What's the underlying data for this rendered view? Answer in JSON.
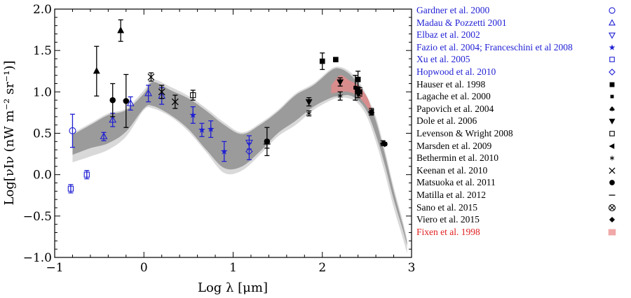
{
  "chart_data": {
    "type": "scatter",
    "title": "",
    "xlabel": "Log λ [μm]",
    "ylabel": "Log[νIν (nW m⁻² sr⁻¹)]",
    "xlim": [
      -1,
      3
    ],
    "ylim": [
      -1.0,
      2.0
    ],
    "x_ticks": [
      "−1",
      "0",
      "1",
      "2",
      "3"
    ],
    "y_ticks": [
      "−1.0",
      "−0.5",
      "0.0",
      "0.5",
      "1.0",
      "1.5",
      "2.0"
    ],
    "legend_position": "right",
    "bands": [
      {
        "name": "light",
        "color": "#d9d9d9",
        "x": [
          -0.8,
          -0.6,
          -0.4,
          -0.2,
          0.0,
          0.1,
          0.3,
          0.5,
          0.7,
          0.9,
          1.1,
          1.3,
          1.5,
          1.7,
          1.9,
          2.1,
          2.2,
          2.3,
          2.4,
          2.5,
          2.6,
          2.7,
          2.8,
          2.9,
          2.95
        ],
        "lo": [
          0.15,
          0.22,
          0.3,
          0.46,
          0.78,
          0.8,
          0.7,
          0.52,
          0.27,
          0.02,
          0.05,
          0.24,
          0.46,
          0.6,
          0.78,
          0.9,
          0.93,
          0.92,
          0.86,
          0.7,
          0.4,
          0.02,
          -0.4,
          -0.76,
          -0.95
        ],
        "hi": [
          0.5,
          0.62,
          0.74,
          0.8,
          1.02,
          1.15,
          1.06,
          0.95,
          0.8,
          0.63,
          0.51,
          0.62,
          0.78,
          0.98,
          1.1,
          1.28,
          1.3,
          1.25,
          1.14,
          0.95,
          0.7,
          0.3,
          -0.15,
          -0.55,
          -0.78
        ]
      },
      {
        "name": "dark",
        "color": "#9b9b9b",
        "x": [
          -0.8,
          -0.6,
          -0.4,
          -0.2,
          0.0,
          0.1,
          0.3,
          0.5,
          0.7,
          0.9,
          1.1,
          1.3,
          1.5,
          1.7,
          1.9,
          2.1,
          2.2,
          2.3,
          2.4,
          2.5,
          2.6,
          2.7,
          2.8,
          2.9,
          2.95
        ],
        "lo": [
          0.24,
          0.32,
          0.38,
          0.52,
          0.8,
          0.83,
          0.72,
          0.55,
          0.3,
          0.08,
          0.1,
          0.28,
          0.5,
          0.65,
          0.82,
          0.93,
          0.95,
          0.96,
          0.9,
          0.76,
          0.48,
          0.12,
          -0.3,
          -0.66,
          -0.85
        ],
        "hi": [
          0.48,
          0.6,
          0.72,
          0.78,
          0.98,
          1.12,
          1.02,
          0.92,
          0.77,
          0.6,
          0.49,
          0.6,
          0.76,
          0.96,
          1.08,
          1.26,
          1.28,
          1.22,
          1.1,
          0.92,
          0.65,
          0.25,
          -0.2,
          -0.6,
          -0.82
        ]
      },
      {
        "name": "Fixen et al. 1998",
        "color": "#d98c8c",
        "x": [
          2.1,
          2.2,
          2.3,
          2.4,
          2.5,
          2.55
        ],
        "lo": [
          0.98,
          1.0,
          1.0,
          0.95,
          0.82,
          0.72
        ],
        "hi": [
          1.08,
          1.2,
          1.14,
          1.08,
          0.94,
          0.8
        ]
      }
    ],
    "series": [
      {
        "name": "Gardner et al. 2000",
        "color": "#1f1fd4",
        "marker": "circle-open",
        "points": [
          [
            -0.8,
            0.53,
            0.2,
            0.2
          ]
        ]
      },
      {
        "name": "Madau & Pozzetti 2001",
        "color": "#1f1fd4",
        "marker": "triangle-up-open",
        "points": [
          [
            -0.45,
            0.46,
            0.05,
            0.05
          ],
          [
            -0.35,
            0.66,
            0.08,
            0.08
          ],
          [
            -0.15,
            0.86,
            0.08,
            0.08
          ],
          [
            0.05,
            0.98,
            0.1,
            0.1
          ],
          [
            0.2,
            0.95,
            0.1,
            0.1
          ]
        ]
      },
      {
        "name": "Elbaz et al. 2002",
        "color": "#1f1fd4",
        "marker": "triangle-down-open",
        "points": [
          [
            1.18,
            0.39,
            0.08,
            0.08
          ]
        ]
      },
      {
        "name": "Fazio et al. 2004; Franceschini et al 2008",
        "color": "#1f1fd4",
        "marker": "star",
        "points": [
          [
            0.55,
            0.72,
            0.1,
            0.1
          ],
          [
            0.65,
            0.54,
            0.08,
            0.08
          ],
          [
            0.75,
            0.55,
            0.1,
            0.1
          ],
          [
            0.9,
            0.28,
            0.12,
            0.12
          ]
        ]
      },
      {
        "name": "Xu et al. 2005",
        "color": "#1f1fd4",
        "marker": "square-open",
        "points": [
          [
            -0.82,
            -0.17,
            0.05,
            0.05
          ],
          [
            -0.64,
            0.0,
            0.05,
            0.05
          ]
        ]
      },
      {
        "name": "Hopwood et al. 2010",
        "color": "#1f1fd4",
        "marker": "diamond-open",
        "points": [
          [
            1.18,
            0.28,
            0.1,
            0.1
          ]
        ]
      },
      {
        "name": "Hauser et al. 1998",
        "color": "#000000",
        "marker": "square",
        "points": [
          [
            2.0,
            1.37,
            0.1,
            0.1
          ],
          [
            2.15,
            1.39,
            0,
            0
          ],
          [
            2.4,
            1.15,
            0.1,
            0.1
          ]
        ]
      },
      {
        "name": "Lagache et al. 2000",
        "color": "#000000",
        "marker": "square-small",
        "points": [
          [
            2.37,
            1.05,
            0.15,
            0.15
          ]
        ]
      },
      {
        "name": "Papovich et al. 2004",
        "color": "#000000",
        "marker": "club",
        "points": [
          [
            2.68,
            0.38,
            0.03,
            0.03
          ]
        ]
      },
      {
        "name": "Dole et al. 2006",
        "color": "#000000",
        "marker": "triangle-down",
        "points": [
          [
            1.85,
            0.88,
            0.05,
            0.05
          ],
          [
            2.2,
            1.12,
            0.05,
            0.05
          ],
          [
            2.4,
            0.98,
            0.05,
            0.05
          ]
        ]
      },
      {
        "name": "Levenson & Wright 2008",
        "color": "#000000",
        "marker": "square-open",
        "points": [
          [
            0.55,
            0.96,
            0.06,
            0.06
          ]
        ]
      },
      {
        "name": "Marsden et al. 2009",
        "color": "#000000",
        "marker": "triangle-left",
        "points": [
          [
            2.42,
            1.0,
            0.05,
            0.05
          ],
          [
            2.55,
            0.76,
            0.04,
            0.04
          ]
        ]
      },
      {
        "name": "Bethermin et al. 2010",
        "color": "#000000",
        "marker": "asterisk",
        "points": [
          [
            1.85,
            0.74,
            0.03,
            0.03
          ],
          [
            2.2,
            0.95,
            0.05,
            0.05
          ]
        ]
      },
      {
        "name": "Keenan et al. 2010",
        "color": "#000000",
        "marker": "cross",
        "points": [
          [
            0.08,
            1.18,
            0.05,
            0.05
          ],
          [
            0.2,
            1.0,
            0.08,
            0.08
          ],
          [
            0.35,
            0.88,
            0.08,
            0.08
          ]
        ]
      },
      {
        "name": "Matsuoka et al. 2011",
        "color": "#000000",
        "marker": "circle",
        "points": [
          [
            -0.35,
            0.9,
            0.2,
            0.2
          ],
          [
            -0.2,
            0.89,
            0.32,
            0.32
          ],
          [
            1.38,
            0.4,
            0.17,
            0.17
          ]
        ]
      },
      {
        "name": "Matilla et al. 2012",
        "color": "#000000",
        "marker": "dash",
        "points": [
          [
            1.38,
            0.37,
            0.05,
            0.05
          ]
        ]
      },
      {
        "name": "Sano et al. 2015",
        "color": "#000000",
        "marker": "otimes",
        "points": []
      },
      {
        "name": "Viero et al. 2015",
        "color": "#000000",
        "marker": "diamond",
        "points": [
          [
            2.4,
            1.02,
            0.04,
            0.04
          ],
          [
            2.55,
            0.75,
            0.03,
            0.03
          ],
          [
            2.7,
            0.37,
            0.02,
            0.02
          ]
        ]
      },
      {
        "name": "Fixen et al. 1998",
        "color": "#d98c8c",
        "marker": "band",
        "points": []
      },
      {
        "name": "",
        "color": "#000000",
        "marker": "triangle-up",
        "points": [
          [
            -0.53,
            1.25,
            0.3,
            0.3
          ],
          [
            -0.26,
            1.74,
            0.13,
            0.13
          ]
        ]
      }
    ]
  },
  "legend": [
    {
      "label": "Gardner et al. 2000",
      "color": "#1f1fd4",
      "marker": "circle-open"
    },
    {
      "label": "Madau & Pozzetti 2001",
      "color": "#1f1fd4",
      "marker": "triangle-up-open"
    },
    {
      "label": "Elbaz et al. 2002",
      "color": "#1f1fd4",
      "marker": "triangle-down-open"
    },
    {
      "label": "Fazio et al. 2004; Franceschini et al 2008",
      "color": "#1f1fd4",
      "marker": "star"
    },
    {
      "label": "Xu et al. 2005",
      "color": "#1f1fd4",
      "marker": "square-open"
    },
    {
      "label": "Hopwood et al. 2010",
      "color": "#1f1fd4",
      "marker": "diamond-open"
    },
    {
      "label": "Hauser et al. 1998",
      "color": "#000000",
      "marker": "square"
    },
    {
      "label": "Lagache et al. 2000",
      "color": "#000000",
      "marker": "square-small"
    },
    {
      "label": "Papovich et al. 2004",
      "color": "#000000",
      "marker": "club"
    },
    {
      "label": "Dole et al. 2006",
      "color": "#000000",
      "marker": "triangle-down"
    },
    {
      "label": "Levenson & Wright 2008",
      "color": "#000000",
      "marker": "square-open"
    },
    {
      "label": "Marsden et al. 2009",
      "color": "#000000",
      "marker": "triangle-left"
    },
    {
      "label": "Bethermin et al. 2010",
      "color": "#000000",
      "marker": "asterisk"
    },
    {
      "label": "Keenan et al. 2010",
      "color": "#000000",
      "marker": "cross"
    },
    {
      "label": "Matsuoka et al. 2011",
      "color": "#000000",
      "marker": "circle"
    },
    {
      "label": "Matilla et al. 2012",
      "color": "#000000",
      "marker": "dash"
    },
    {
      "label": "Sano et al. 2015",
      "color": "#000000",
      "marker": "otimes"
    },
    {
      "label": "Viero et al. 2015",
      "color": "#000000",
      "marker": "diamond"
    },
    {
      "label": "Fixen et al. 1998",
      "color": "#e02020",
      "marker": "band"
    }
  ]
}
